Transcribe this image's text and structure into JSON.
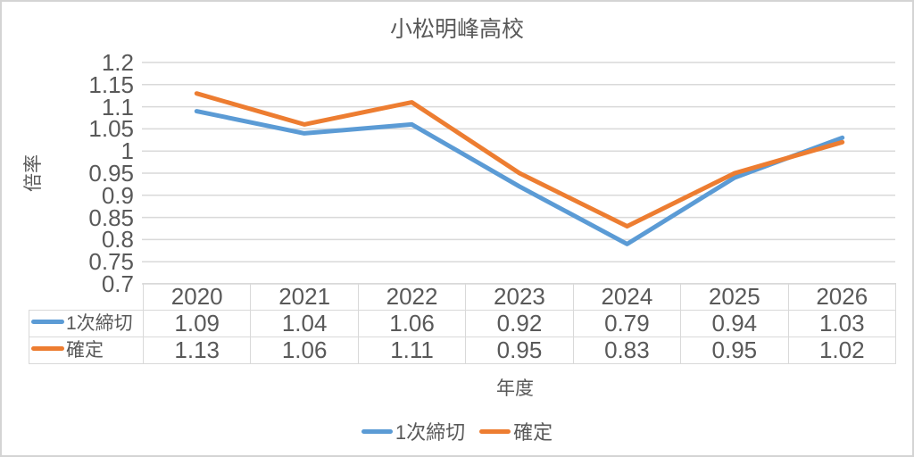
{
  "chart_data": {
    "type": "line",
    "title": "小松明峰高校",
    "xlabel": "年度",
    "ylabel": "倍率",
    "categories": [
      "2020",
      "2021",
      "2022",
      "2023",
      "2024",
      "2025",
      "2026"
    ],
    "series": [
      {
        "name": "1次締切",
        "color": "#5B9BD5",
        "values": [
          1.09,
          1.04,
          1.06,
          0.92,
          0.79,
          0.94,
          1.03
        ]
      },
      {
        "name": "確定",
        "color": "#ED7D31",
        "values": [
          1.13,
          1.06,
          1.11,
          0.95,
          0.83,
          0.95,
          1.02
        ]
      }
    ],
    "ylim": [
      0.7,
      1.2
    ],
    "ytick_step": 0.05,
    "ytick_labels": [
      "1.2",
      "1.15",
      "1.1",
      "1.05",
      "1",
      "0.95",
      "0.9",
      "0.85",
      "0.8",
      "0.75",
      "0.7"
    ],
    "grid": true,
    "legend_position": "bottom",
    "data_table_with_legend_keys": true,
    "colors": {
      "text": "#595959",
      "gridline": "#d9d9d9",
      "table_border": "#d9d9d9",
      "frame_border": "#d4d4d4",
      "background": "#ffffff"
    }
  }
}
